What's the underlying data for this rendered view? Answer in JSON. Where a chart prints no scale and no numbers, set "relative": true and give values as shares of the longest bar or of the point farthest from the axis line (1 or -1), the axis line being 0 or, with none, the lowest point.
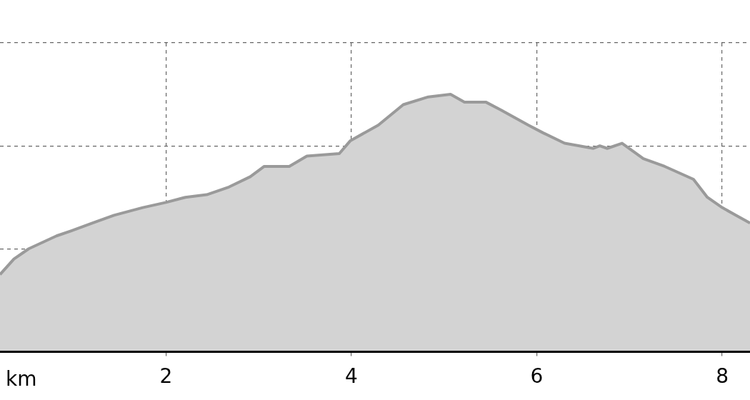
{
  "chart_data": {
    "type": "area",
    "xlabel": "km",
    "relative": true,
    "grid": true,
    "marker": "none",
    "line_style": "solid",
    "legend": false,
    "xlim": [
      0.21,
      8.3
    ],
    "xticks": [
      2,
      4,
      6,
      8
    ],
    "series": [
      {
        "color": "#9a9a9a",
        "x": [
          0.21,
          0.36,
          0.52,
          0.82,
          0.98,
          1.21,
          1.44,
          1.75,
          2.0,
          2.21,
          2.44,
          2.68,
          2.91,
          3.06,
          3.33,
          3.52,
          3.87,
          3.99,
          4.29,
          4.56,
          4.83,
          5.07,
          5.22,
          5.45,
          5.61,
          5.91,
          6.07,
          6.3,
          6.61,
          6.68,
          6.76,
          6.92,
          7.15,
          7.38,
          7.69,
          7.84,
          8.0,
          8.15,
          8.3
        ],
        "values": [
          0.3,
          0.36,
          0.4,
          0.45,
          0.47,
          0.5,
          0.53,
          0.56,
          0.58,
          0.6,
          0.61,
          0.64,
          0.68,
          0.72,
          0.72,
          0.76,
          0.77,
          0.82,
          0.88,
          0.96,
          0.99,
          1,
          0.97,
          0.97,
          0.94,
          0.88,
          0.85,
          0.81,
          0.79,
          0.8,
          0.79,
          0.81,
          0.75,
          0.72,
          0.67,
          0.6,
          0.56,
          0.53,
          0.5
        ]
      }
    ]
  }
}
